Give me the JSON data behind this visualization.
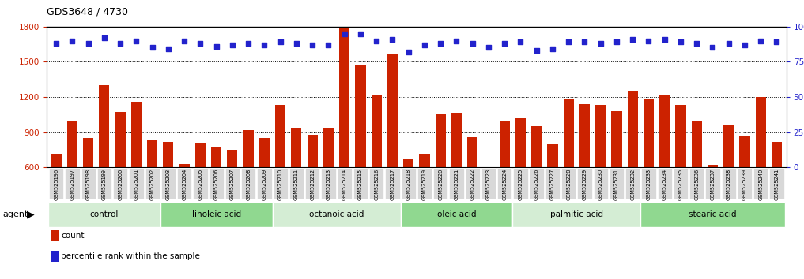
{
  "title": "GDS3648 / 4730",
  "samples": [
    "GSM525196",
    "GSM525197",
    "GSM525198",
    "GSM525199",
    "GSM525200",
    "GSM525201",
    "GSM525202",
    "GSM525203",
    "GSM525204",
    "GSM525205",
    "GSM525206",
    "GSM525207",
    "GSM525208",
    "GSM525209",
    "GSM525210",
    "GSM525211",
    "GSM525212",
    "GSM525213",
    "GSM525214",
    "GSM525215",
    "GSM525216",
    "GSM525217",
    "GSM525218",
    "GSM525219",
    "GSM525220",
    "GSM525221",
    "GSM525222",
    "GSM525223",
    "GSM525224",
    "GSM525225",
    "GSM525226",
    "GSM525227",
    "GSM525228",
    "GSM525229",
    "GSM525230",
    "GSM525231",
    "GSM525232",
    "GSM525233",
    "GSM525234",
    "GSM525235",
    "GSM525236",
    "GSM525237",
    "GSM525238",
    "GSM525239",
    "GSM525240",
    "GSM525241"
  ],
  "counts": [
    720,
    1000,
    850,
    1300,
    1070,
    1150,
    830,
    820,
    630,
    810,
    780,
    750,
    920,
    850,
    1130,
    930,
    880,
    940,
    1800,
    1470,
    1220,
    1570,
    670,
    710,
    1050,
    1060,
    860,
    560,
    990,
    1020,
    950,
    800,
    1190,
    1140,
    1130,
    1080,
    1250,
    1190,
    1220,
    1130,
    1000,
    620,
    960,
    870,
    1200,
    820
  ],
  "percentiles": [
    88,
    90,
    88,
    92,
    88,
    90,
    85,
    84,
    90,
    88,
    86,
    87,
    88,
    87,
    89,
    88,
    87,
    87,
    95,
    95,
    90,
    91,
    82,
    87,
    88,
    90,
    88,
    85,
    88,
    89,
    83,
    84,
    89,
    89,
    88,
    89,
    91,
    90,
    91,
    89,
    88,
    85,
    88,
    87,
    90,
    89
  ],
  "groups": [
    {
      "label": "control",
      "start": 0,
      "end": 7
    },
    {
      "label": "linoleic acid",
      "start": 7,
      "end": 14
    },
    {
      "label": "octanoic acid",
      "start": 14,
      "end": 22
    },
    {
      "label": "oleic acid",
      "start": 22,
      "end": 29
    },
    {
      "label": "palmitic acid",
      "start": 29,
      "end": 37
    },
    {
      "label": "stearic acid",
      "start": 37,
      "end": 46
    }
  ],
  "group_colors": [
    "#d4edd4",
    "#90d890",
    "#d4edd4",
    "#90d890",
    "#d4edd4",
    "#90d890"
  ],
  "bar_color": "#cc2200",
  "dot_color": "#2222cc",
  "ylim_left": [
    600,
    1800
  ],
  "yticks_left": [
    600,
    900,
    1200,
    1500,
    1800
  ],
  "ylim_right": [
    0,
    100
  ],
  "yticks_right": [
    0,
    25,
    50,
    75,
    100
  ],
  "bg_color": "#ffffff",
  "plot_bg": "#ffffff",
  "agent_label": "agent",
  "legend_count_label": "count",
  "legend_pct_label": "percentile rank within the sample"
}
